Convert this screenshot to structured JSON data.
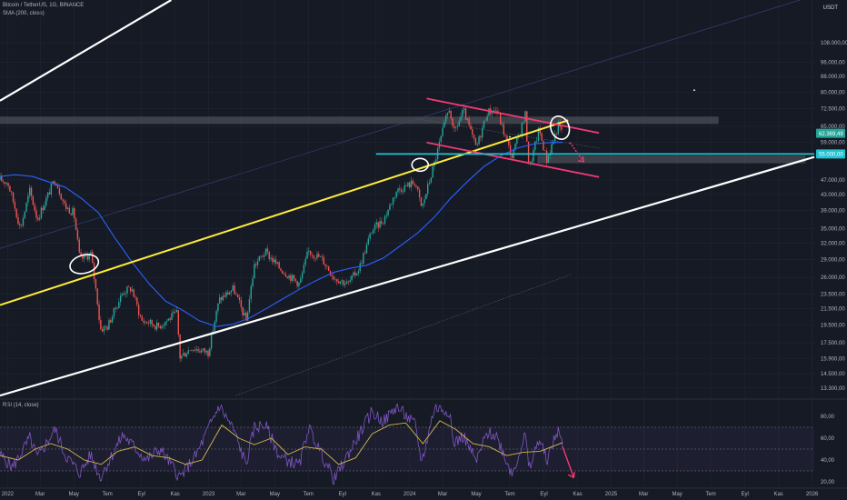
{
  "header": {
    "symbol": "Bitcoin / TetherUS, 1G, BINANCE",
    "indicator": "SMA (200, close)",
    "rsi_label": "RSI (14, close)",
    "currency": "USDT"
  },
  "price_badges": {
    "current": "62.369,49",
    "level": "55.000,00"
  },
  "colors": {
    "background": "#161a25",
    "grid": "#222633",
    "up_candle": "#26a69a",
    "down_candle": "#ef5350",
    "sma": "#2962ff",
    "rsi": "#7e57c2",
    "rsi_ma": "#d4b84c",
    "trendline": "#ffeb3b",
    "channel": "#ffffff",
    "wedge": "#f23a72",
    "support": "#22c3d1",
    "resistance_zone": "#5d6066"
  },
  "chart_data": [
    {
      "type": "candlestick",
      "title": "Bitcoin / TetherUS, 1G, BINANCE",
      "y_scale": "log",
      "ylim": [
        12500,
        140000
      ],
      "x_range": [
        "2021-12-18",
        "2026-01-05"
      ],
      "y_ticks": [
        {
          "label": "108.000,00",
          "value": 108000
        },
        {
          "label": "96.000,00",
          "value": 96000
        },
        {
          "label": "88.000,00",
          "value": 88000
        },
        {
          "label": "80.000,00",
          "value": 80000
        },
        {
          "label": "72.500,00",
          "value": 72500
        },
        {
          "label": "65.000,00",
          "value": 65000
        },
        {
          "label": "59.000,00",
          "value": 59000
        },
        {
          "label": "47.000,00",
          "value": 47000
        },
        {
          "label": "43.000,00",
          "value": 43000
        },
        {
          "label": "39.000,00",
          "value": 39000
        },
        {
          "label": "35.000,00",
          "value": 35000
        },
        {
          "label": "32.000,00",
          "value": 32000
        },
        {
          "label": "29.000,00",
          "value": 29000
        },
        {
          "label": "26.000,00",
          "value": 26000
        },
        {
          "label": "23.500,00",
          "value": 23500
        },
        {
          "label": "21.500,00",
          "value": 21500
        },
        {
          "label": "19.500,00",
          "value": 19500
        },
        {
          "label": "17.500,00",
          "value": 17500
        },
        {
          "label": "15.900,00",
          "value": 15900
        },
        {
          "label": "14.500,00",
          "value": 14500
        },
        {
          "label": "13.300,00",
          "value": 13300
        }
      ],
      "x_ticks": [
        {
          "label": "2022",
          "date": "2022-01-01"
        },
        {
          "label": "Mar",
          "date": "2022-03-01"
        },
        {
          "label": "May",
          "date": "2022-05-01"
        },
        {
          "label": "Tem",
          "date": "2022-07-01"
        },
        {
          "label": "Eyl",
          "date": "2022-09-01"
        },
        {
          "label": "Kas",
          "date": "2022-11-01"
        },
        {
          "label": "2023",
          "date": "2023-01-01"
        },
        {
          "label": "Mar",
          "date": "2023-03-01"
        },
        {
          "label": "May",
          "date": "2023-05-01"
        },
        {
          "label": "Tem",
          "date": "2023-07-01"
        },
        {
          "label": "Eyl",
          "date": "2023-09-01"
        },
        {
          "label": "Kas",
          "date": "2023-11-01"
        },
        {
          "label": "2024",
          "date": "2024-01-01"
        },
        {
          "label": "Mar",
          "date": "2024-03-01"
        },
        {
          "label": "May",
          "date": "2024-05-01"
        },
        {
          "label": "Tem",
          "date": "2024-07-01"
        },
        {
          "label": "Eyl",
          "date": "2024-09-01"
        },
        {
          "label": "Kas",
          "date": "2024-11-01"
        },
        {
          "label": "2025",
          "date": "2025-01-01"
        },
        {
          "label": "Mar",
          "date": "2025-03-01"
        },
        {
          "label": "May",
          "date": "2025-05-01"
        },
        {
          "label": "Tem",
          "date": "2025-07-01"
        },
        {
          "label": "Eyl",
          "date": "2025-09-01"
        },
        {
          "label": "Kas",
          "date": "2025-11-01"
        },
        {
          "label": "2026",
          "date": "2026-01-01"
        }
      ],
      "price_path": [
        [
          "2021-12-18",
          47000
        ],
        [
          "2022-01-01",
          46300
        ],
        [
          "2022-01-10",
          41800
        ],
        [
          "2022-01-24",
          35000
        ],
        [
          "2022-02-10",
          44000
        ],
        [
          "2022-02-24",
          37000
        ],
        [
          "2022-03-28",
          47400
        ],
        [
          "2022-04-15",
          40000
        ],
        [
          "2022-05-01",
          38500
        ],
        [
          "2022-05-12",
          29000
        ],
        [
          "2022-06-01",
          30000
        ],
        [
          "2022-06-13",
          22500
        ],
        [
          "2022-06-18",
          19000
        ],
        [
          "2022-07-01",
          19300
        ],
        [
          "2022-07-29",
          23800
        ],
        [
          "2022-08-14",
          24400
        ],
        [
          "2022-09-01",
          20000
        ],
        [
          "2022-09-15",
          19800
        ],
        [
          "2022-10-01",
          19300
        ],
        [
          "2022-11-05",
          21000
        ],
        [
          "2022-11-09",
          16000
        ],
        [
          "2022-12-01",
          17000
        ],
        [
          "2022-12-31",
          16500
        ],
        [
          "2023-01-20",
          22700
        ],
        [
          "2023-02-15",
          24300
        ],
        [
          "2023-03-10",
          20000
        ],
        [
          "2023-03-25",
          28000
        ],
        [
          "2023-04-14",
          30400
        ],
        [
          "2023-05-10",
          27500
        ],
        [
          "2023-06-15",
          25000
        ],
        [
          "2023-07-01",
          30500
        ],
        [
          "2023-07-25",
          29200
        ],
        [
          "2023-08-17",
          26000
        ],
        [
          "2023-09-11",
          25000
        ],
        [
          "2023-10-01",
          27500
        ],
        [
          "2023-10-24",
          34500
        ],
        [
          "2023-11-15",
          37000
        ],
        [
          "2023-12-08",
          44000
        ],
        [
          "2024-01-11",
          46500
        ],
        [
          "2024-01-23",
          39500
        ],
        [
          "2024-02-15",
          52000
        ],
        [
          "2024-03-05",
          66500
        ],
        [
          "2024-03-14",
          73500
        ],
        [
          "2024-03-20",
          62000
        ],
        [
          "2024-04-08",
          71500
        ],
        [
          "2024-05-01",
          57000
        ],
        [
          "2024-05-21",
          71000
        ],
        [
          "2024-06-07",
          71800
        ],
        [
          "2024-07-05",
          54000
        ],
        [
          "2024-07-29",
          69800
        ],
        [
          "2024-08-05",
          50000
        ],
        [
          "2024-08-23",
          64000
        ],
        [
          "2024-09-06",
          53000
        ],
        [
          "2024-09-27",
          65500
        ],
        [
          "2024-10-05",
          62300
        ]
      ],
      "sma_200_path": [
        [
          "2021-12-18",
          48000
        ],
        [
          "2022-01-15",
          48500
        ],
        [
          "2022-02-15",
          48000
        ],
        [
          "2022-03-15",
          46500
        ],
        [
          "2022-04-15",
          45000
        ],
        [
          "2022-05-15",
          42000
        ],
        [
          "2022-06-15",
          38500
        ],
        [
          "2022-07-15",
          33000
        ],
        [
          "2022-08-15",
          28500
        ],
        [
          "2022-09-15",
          25000
        ],
        [
          "2022-10-15",
          22500
        ],
        [
          "2022-11-15",
          21300
        ],
        [
          "2022-12-15",
          20000
        ],
        [
          "2023-01-15",
          19300
        ],
        [
          "2023-02-15",
          19600
        ],
        [
          "2023-03-15",
          20300
        ],
        [
          "2023-04-15",
          21500
        ],
        [
          "2023-05-15",
          22800
        ],
        [
          "2023-06-15",
          24200
        ],
        [
          "2023-07-15",
          25500
        ],
        [
          "2023-08-15",
          26800
        ],
        [
          "2023-09-15",
          27500
        ],
        [
          "2023-10-15",
          28000
        ],
        [
          "2023-11-15",
          29300
        ],
        [
          "2023-12-15",
          31500
        ],
        [
          "2024-01-15",
          34000
        ],
        [
          "2024-02-15",
          37500
        ],
        [
          "2024-03-15",
          42000
        ],
        [
          "2024-04-15",
          46500
        ],
        [
          "2024-05-15",
          51000
        ],
        [
          "2024-06-15",
          54500
        ],
        [
          "2024-07-15",
          57000
        ],
        [
          "2024-08-15",
          58500
        ],
        [
          "2024-09-15",
          59000
        ],
        [
          "2024-10-05",
          59000
        ]
      ],
      "drawings": {
        "trendline": [
          [
            "2021-12-18",
            22000
          ],
          [
            "2024-10-15",
            67500
          ]
        ],
        "channel_upper": [
          [
            "2021-12-18",
            76000
          ],
          [
            "2022-10-25",
            140000
          ]
        ],
        "channel_lower": [
          [
            "2021-12-18",
            12700
          ],
          [
            "2026-01-05",
            54000
          ]
        ],
        "wedge_top": [
          [
            "2024-02-01",
            77000
          ],
          [
            "2024-12-10",
            62500
          ]
        ],
        "wedge_bottom": [
          [
            "2024-02-01",
            59000
          ],
          [
            "2024-12-10",
            47800
          ]
        ],
        "support_level": 55000,
        "resistance_zone": [
          66000,
          69000
        ],
        "support_zone": [
          52000,
          54500
        ]
      }
    },
    {
      "type": "line",
      "title": "RSI (14, close)",
      "ylim": [
        15,
        95
      ],
      "y_ticks": [
        {
          "label": "80,00",
          "value": 80
        },
        {
          "label": "60,00",
          "value": 60
        },
        {
          "label": "40,00",
          "value": 40
        },
        {
          "label": "20,00",
          "value": 20
        }
      ],
      "band": [
        30,
        70
      ],
      "rsi_path": [
        [
          "2021-12-18",
          45
        ],
        [
          "2022-01-10",
          33
        ],
        [
          "2022-02-10",
          60
        ],
        [
          "2022-02-24",
          42
        ],
        [
          "2022-03-28",
          68
        ],
        [
          "2022-04-15",
          45
        ],
        [
          "2022-05-12",
          28
        ],
        [
          "2022-06-01",
          45
        ],
        [
          "2022-06-18",
          24
        ],
        [
          "2022-07-29",
          63
        ],
        [
          "2022-09-10",
          40
        ],
        [
          "2022-10-05",
          50
        ],
        [
          "2022-11-10",
          24
        ],
        [
          "2022-12-10",
          45
        ],
        [
          "2023-01-20",
          90
        ],
        [
          "2023-02-15",
          68
        ],
        [
          "2023-03-10",
          36
        ],
        [
          "2023-03-25",
          70
        ],
        [
          "2023-04-14",
          72
        ],
        [
          "2023-05-10",
          43
        ],
        [
          "2023-06-15",
          35
        ],
        [
          "2023-07-01",
          70
        ],
        [
          "2023-08-17",
          22
        ],
        [
          "2023-09-11",
          45
        ],
        [
          "2023-10-24",
          84
        ],
        [
          "2023-11-15",
          75
        ],
        [
          "2023-12-08",
          89
        ],
        [
          "2024-01-11",
          72
        ],
        [
          "2024-01-23",
          38
        ],
        [
          "2024-02-15",
          88
        ],
        [
          "2024-03-14",
          85
        ],
        [
          "2024-03-20",
          55
        ],
        [
          "2024-04-08",
          62
        ],
        [
          "2024-05-01",
          38
        ],
        [
          "2024-05-21",
          65
        ],
        [
          "2024-06-07",
          62
        ],
        [
          "2024-07-05",
          27
        ],
        [
          "2024-07-29",
          63
        ],
        [
          "2024-08-05",
          30
        ],
        [
          "2024-08-23",
          60
        ],
        [
          "2024-09-06",
          40
        ],
        [
          "2024-09-27",
          68
        ],
        [
          "2024-10-05",
          52
        ]
      ],
      "rsi_ma_path": [
        [
          "2021-12-18",
          44
        ],
        [
          "2022-01-20",
          40
        ],
        [
          "2022-02-20",
          50
        ],
        [
          "2022-03-20",
          55
        ],
        [
          "2022-04-20",
          50
        ],
        [
          "2022-05-20",
          40
        ],
        [
          "2022-06-20",
          36
        ],
        [
          "2022-07-20",
          48
        ],
        [
          "2022-08-20",
          52
        ],
        [
          "2022-09-20",
          44
        ],
        [
          "2022-10-20",
          42
        ],
        [
          "2022-11-20",
          36
        ],
        [
          "2022-12-20",
          40
        ],
        [
          "2023-01-25",
          72
        ],
        [
          "2023-02-25",
          60
        ],
        [
          "2023-03-25",
          54
        ],
        [
          "2023-04-25",
          60
        ],
        [
          "2023-05-25",
          45
        ],
        [
          "2023-06-25",
          52
        ],
        [
          "2023-07-25",
          50
        ],
        [
          "2023-08-25",
          36
        ],
        [
          "2023-09-25",
          42
        ],
        [
          "2023-10-25",
          64
        ],
        [
          "2023-11-25",
          72
        ],
        [
          "2023-12-25",
          74
        ],
        [
          "2024-01-25",
          55
        ],
        [
          "2024-02-25",
          76
        ],
        [
          "2024-03-25",
          68
        ],
        [
          "2024-04-25",
          55
        ],
        [
          "2024-05-25",
          52
        ],
        [
          "2024-06-25",
          44
        ],
        [
          "2024-07-25",
          47
        ],
        [
          "2024-08-25",
          48
        ],
        [
          "2024-09-25",
          54
        ],
        [
          "2024-10-05",
          56
        ]
      ]
    }
  ]
}
